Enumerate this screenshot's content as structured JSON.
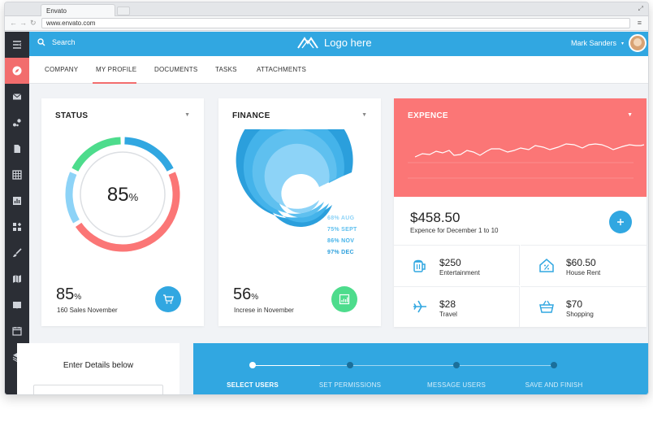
{
  "browser": {
    "tab_title": "Envato",
    "url": "www.envato.com"
  },
  "topbar": {
    "search_label": "Search",
    "logo_text": "Logo here",
    "user_name": "Mark Sanders"
  },
  "sidebar": {
    "items": [
      "menu-icon",
      "compass-icon",
      "mail-icon",
      "nodes-icon",
      "document-icon",
      "table-icon",
      "chart-icon",
      "widgets-icon",
      "brush-icon",
      "map-icon",
      "book-icon",
      "calendar-icon",
      "layers-icon"
    ],
    "active_index": 1
  },
  "subnav": {
    "tabs": [
      "COMPANY",
      "MY PROFILE",
      "DOCUMENTS",
      "TASKS",
      "ATTACHMENTS"
    ],
    "active_tab": "MY PROFILE"
  },
  "status": {
    "title": "STATUS",
    "center_value": "85",
    "center_unit": "%",
    "value": "85",
    "unit": "%",
    "caption": "160 Sales November",
    "ring_segments": [
      {
        "color": "#31a7e1",
        "fraction": 0.18
      },
      {
        "color": "#fb7676",
        "fraction": 0.48
      },
      {
        "color": "#8dd3f7",
        "fraction": 0.16
      },
      {
        "color": "#4ddc8c",
        "fraction": 0.18
      }
    ]
  },
  "finance": {
    "title": "FINANCE",
    "value": "56",
    "unit": "%",
    "caption": "Increse in November",
    "legend": [
      {
        "label": "68% AUG",
        "color": "#8dd3f7"
      },
      {
        "label": "75% SEPT",
        "color": "#5fc0ef"
      },
      {
        "label": "86% NOV",
        "color": "#44b3ea"
      },
      {
        "label": "97% DEC",
        "color": "#2b9fdc"
      }
    ]
  },
  "expence": {
    "title": "EXPENCE",
    "amount": "$458.50",
    "caption": "Expence for December 1 to 10",
    "cells": [
      {
        "value": "$250",
        "label": "Entertainment",
        "icon": "beer-icon"
      },
      {
        "value": "$60.50",
        "label": "House Rent",
        "icon": "house-percent-icon"
      },
      {
        "value": "$28",
        "label": "Travel",
        "icon": "plane-icon"
      },
      {
        "value": "$70",
        "label": "Shopping",
        "icon": "basket-icon"
      }
    ]
  },
  "details": {
    "title": "Enter Details below"
  },
  "wizard": {
    "steps": [
      "SELECT USERS",
      "SET PERMISSIONS",
      "MESSAGE USERS",
      "SAVE AND FINISH"
    ],
    "active_index": 0
  },
  "colors": {
    "primary": "#31a7e1",
    "accent": "#fb7676",
    "green": "#4ddc8c",
    "sidebar": "#2b2e35"
  }
}
